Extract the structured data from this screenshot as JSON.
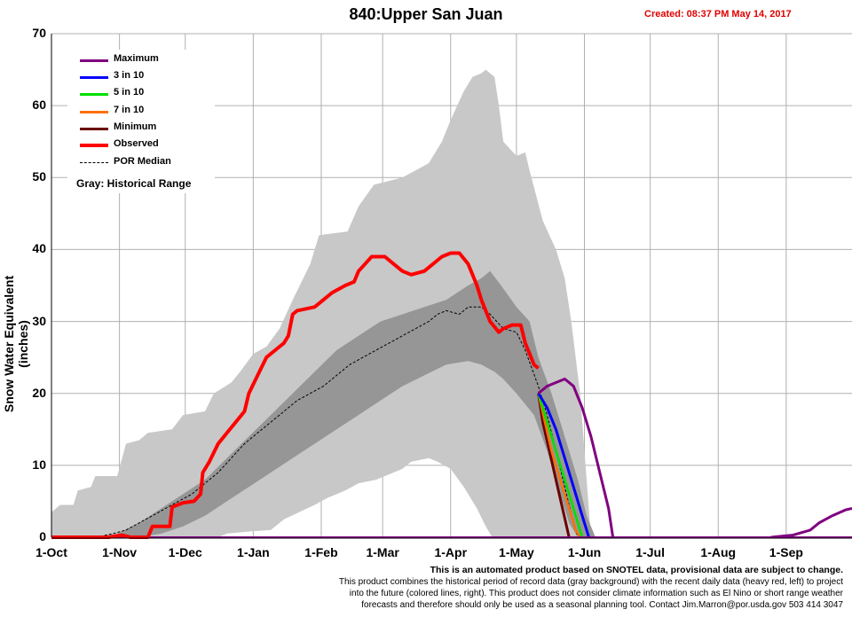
{
  "header": {
    "title": "840:Upper San Juan",
    "created": "Created: 08:37 PM May 14, 2017"
  },
  "colors": {
    "maximum": "#800080",
    "p3in10": "#0000ff",
    "p5in10": "#00e000",
    "p7in10": "#ff7000",
    "minimum": "#6b0000",
    "observed": "#ff0000",
    "median": "#000000",
    "hist_outer": "#c8c8c8",
    "hist_inner": "#969696"
  },
  "legend": {
    "items": [
      {
        "key": "maximum",
        "label": "Maximum"
      },
      {
        "key": "p3in10",
        "label": "3 in 10"
      },
      {
        "key": "p5in10",
        "label": "5 in 10"
      },
      {
        "key": "p7in10",
        "label": "7 in 10"
      },
      {
        "key": "minimum",
        "label": "Minimum"
      },
      {
        "key": "observed",
        "label": "Observed"
      },
      {
        "key": "median",
        "label": "POR Median"
      }
    ],
    "gray_note": "Gray: Historical Range"
  },
  "footer": {
    "line1": "This is an automated product based on SNOTEL data, provisional data are subject to change.",
    "line2": "This product combines the historical period of record data (gray background) with the recent daily data (heavy red, left) to project",
    "line3": "into the future (colored lines, right). This product does not consider climate information such as El Nino or short range weather",
    "line4": "forecasts and therefore should only be used as a seasonal planning tool. Contact Jim.Marron@por.usda.gov 503 414 3047"
  },
  "chart_data": {
    "type": "area",
    "title": "840:Upper San Juan",
    "ylabel": "Snow Water Equivalent (inches)",
    "xlabel": "",
    "ylim": [
      0,
      70
    ],
    "yticks": [
      0,
      10,
      20,
      30,
      40,
      50,
      60,
      70
    ],
    "xticks": [
      {
        "label": "1-Oct",
        "day": 0
      },
      {
        "label": "1-Nov",
        "day": 31
      },
      {
        "label": "1-Dec",
        "day": 61
      },
      {
        "label": "1-Jan",
        "day": 92
      },
      {
        "label": "1-Feb",
        "day": 123
      },
      {
        "label": "1-Mar",
        "day": 151
      },
      {
        "label": "1-Apr",
        "day": 182
      },
      {
        "label": "1-May",
        "day": 212
      },
      {
        "label": "1-Jun",
        "day": 243
      },
      {
        "label": "1-Jul",
        "day": 273
      },
      {
        "label": "1-Aug",
        "day": 304
      },
      {
        "label": "1-Sep",
        "day": 335
      }
    ],
    "xlim": [
      0,
      365
    ],
    "grid": true,
    "legend_position": "top-left",
    "series": [
      {
        "name": "Historical Range (max)",
        "key": "hist_outer_top",
        "points": [
          [
            0,
            3.5
          ],
          [
            4,
            4.5
          ],
          [
            10,
            4.5
          ],
          [
            12,
            6.5
          ],
          [
            18,
            7
          ],
          [
            20,
            8.5
          ],
          [
            30,
            8.5
          ],
          [
            34,
            13
          ],
          [
            40,
            13.5
          ],
          [
            44,
            14.5
          ],
          [
            55,
            15
          ],
          [
            60,
            17
          ],
          [
            70,
            17.5
          ],
          [
            74,
            20
          ],
          [
            82,
            21.5
          ],
          [
            86,
            23
          ],
          [
            92,
            25.5
          ],
          [
            98,
            26.5
          ],
          [
            104,
            29
          ],
          [
            110,
            33
          ],
          [
            118,
            38
          ],
          [
            122,
            42
          ],
          [
            135,
            42.5
          ],
          [
            140,
            46
          ],
          [
            147,
            49
          ],
          [
            160,
            50
          ],
          [
            166,
            51
          ],
          [
            172,
            52
          ],
          [
            178,
            55
          ],
          [
            182,
            58
          ],
          [
            188,
            62
          ],
          [
            192,
            64
          ],
          [
            196,
            64.5
          ],
          [
            198,
            65
          ],
          [
            202,
            64
          ],
          [
            204,
            60
          ],
          [
            206,
            55
          ],
          [
            212,
            53
          ],
          [
            216,
            53.5
          ],
          [
            218,
            51
          ],
          [
            224,
            44
          ],
          [
            230,
            40
          ],
          [
            234,
            36
          ],
          [
            237,
            30
          ],
          [
            241,
            20
          ],
          [
            243,
            12
          ],
          [
            246,
            0
          ],
          [
            365,
            0
          ]
        ]
      },
      {
        "name": "Historical Range (min)",
        "key": "hist_outer_bottom",
        "points": [
          [
            0,
            0
          ],
          [
            76,
            0
          ],
          [
            80,
            0.5
          ],
          [
            90,
            0.8
          ],
          [
            100,
            1
          ],
          [
            106,
            2.5
          ],
          [
            120,
            4.5
          ],
          [
            126,
            5.5
          ],
          [
            134,
            6.5
          ],
          [
            140,
            7.5
          ],
          [
            148,
            8
          ],
          [
            152,
            8.5
          ],
          [
            160,
            9.5
          ],
          [
            164,
            10.5
          ],
          [
            172,
            11
          ],
          [
            176,
            10.5
          ],
          [
            182,
            9.5
          ],
          [
            188,
            7
          ],
          [
            194,
            4
          ],
          [
            198,
            1.5
          ],
          [
            201,
            0
          ],
          [
            365,
            0
          ]
        ]
      },
      {
        "name": "Historical inner band (upper)",
        "key": "hist_inner_top",
        "points": [
          [
            0,
            0
          ],
          [
            20,
            0
          ],
          [
            30,
            0.5
          ],
          [
            40,
            2
          ],
          [
            50,
            4
          ],
          [
            60,
            6
          ],
          [
            70,
            8
          ],
          [
            80,
            11
          ],
          [
            90,
            14
          ],
          [
            100,
            17
          ],
          [
            110,
            20
          ],
          [
            120,
            23
          ],
          [
            130,
            26
          ],
          [
            140,
            28
          ],
          [
            150,
            30
          ],
          [
            160,
            31
          ],
          [
            170,
            32
          ],
          [
            180,
            33
          ],
          [
            190,
            35
          ],
          [
            196,
            36
          ],
          [
            200,
            37
          ],
          [
            205,
            35
          ],
          [
            212,
            32
          ],
          [
            218,
            30
          ],
          [
            222,
            25
          ],
          [
            228,
            20
          ],
          [
            234,
            14
          ],
          [
            240,
            8
          ],
          [
            244,
            3
          ],
          [
            248,
            0
          ]
        ]
      },
      {
        "name": "Historical inner band (lower)",
        "key": "hist_inner_bottom",
        "points": [
          [
            0,
            0
          ],
          [
            40,
            0
          ],
          [
            50,
            0.5
          ],
          [
            60,
            1.5
          ],
          [
            70,
            3
          ],
          [
            80,
            5
          ],
          [
            90,
            7
          ],
          [
            100,
            9
          ],
          [
            110,
            11
          ],
          [
            120,
            13
          ],
          [
            130,
            15
          ],
          [
            140,
            17
          ],
          [
            150,
            19
          ],
          [
            160,
            21
          ],
          [
            170,
            22.5
          ],
          [
            180,
            24
          ],
          [
            190,
            24.5
          ],
          [
            196,
            24
          ],
          [
            202,
            23
          ],
          [
            206,
            22
          ],
          [
            212,
            20
          ],
          [
            220,
            17
          ],
          [
            226,
            12
          ],
          [
            232,
            6
          ],
          [
            236,
            2
          ],
          [
            240,
            0
          ]
        ]
      },
      {
        "name": "Observed",
        "key": "observed",
        "points": [
          [
            0,
            0
          ],
          [
            26,
            0
          ],
          [
            32,
            0.3
          ],
          [
            36,
            0
          ],
          [
            44,
            0
          ],
          [
            46,
            1.5
          ],
          [
            54,
            1.5
          ],
          [
            55,
            4.2
          ],
          [
            60,
            4.8
          ],
          [
            65,
            5
          ],
          [
            68,
            6
          ],
          [
            69,
            9
          ],
          [
            72,
            10.5
          ],
          [
            76,
            13
          ],
          [
            80,
            14.5
          ],
          [
            84,
            16
          ],
          [
            88,
            17.5
          ],
          [
            90,
            20
          ],
          [
            94,
            22.5
          ],
          [
            98,
            25
          ],
          [
            102,
            26
          ],
          [
            106,
            27
          ],
          [
            108,
            28
          ],
          [
            110,
            31
          ],
          [
            112,
            31.5
          ],
          [
            120,
            32
          ],
          [
            124,
            33
          ],
          [
            128,
            34
          ],
          [
            134,
            35
          ],
          [
            138,
            35.5
          ],
          [
            140,
            37
          ],
          [
            143,
            38
          ],
          [
            146,
            39
          ],
          [
            152,
            39
          ],
          [
            156,
            38
          ],
          [
            160,
            37
          ],
          [
            164,
            36.5
          ],
          [
            170,
            37
          ],
          [
            174,
            38
          ],
          [
            178,
            39
          ],
          [
            182,
            39.5
          ],
          [
            186,
            39.5
          ],
          [
            190,
            38
          ],
          [
            194,
            35
          ],
          [
            196,
            33
          ],
          [
            200,
            30
          ],
          [
            204,
            28.5
          ],
          [
            206,
            29
          ],
          [
            210,
            29.5
          ],
          [
            214,
            29.5
          ],
          [
            216,
            27
          ],
          [
            220,
            24
          ],
          [
            222,
            23.5
          ]
        ]
      },
      {
        "name": "POR Median",
        "key": "median",
        "points": [
          [
            0,
            0
          ],
          [
            20,
            0
          ],
          [
            28,
            0.5
          ],
          [
            34,
            1
          ],
          [
            40,
            2
          ],
          [
            46,
            3
          ],
          [
            52,
            4
          ],
          [
            58,
            5
          ],
          [
            64,
            6
          ],
          [
            70,
            7.5
          ],
          [
            76,
            9
          ],
          [
            82,
            11
          ],
          [
            88,
            13
          ],
          [
            94,
            14.5
          ],
          [
            100,
            16
          ],
          [
            106,
            17.5
          ],
          [
            112,
            19
          ],
          [
            118,
            20
          ],
          [
            124,
            21
          ],
          [
            130,
            22.5
          ],
          [
            136,
            24
          ],
          [
            142,
            25
          ],
          [
            148,
            26
          ],
          [
            154,
            27
          ],
          [
            160,
            28
          ],
          [
            166,
            29
          ],
          [
            172,
            30
          ],
          [
            176,
            31
          ],
          [
            180,
            31.5
          ],
          [
            186,
            31
          ],
          [
            190,
            32
          ],
          [
            196,
            32
          ],
          [
            200,
            31
          ],
          [
            206,
            29
          ],
          [
            212,
            28.5
          ],
          [
            216,
            26
          ],
          [
            222,
            21
          ],
          [
            226,
            17
          ],
          [
            230,
            12
          ],
          [
            234,
            7
          ],
          [
            238,
            2
          ],
          [
            240,
            0
          ]
        ]
      },
      {
        "name": "Maximum",
        "key": "maximum",
        "points": [
          [
            222,
            20
          ],
          [
            226,
            21
          ],
          [
            230,
            21.5
          ],
          [
            234,
            22
          ],
          [
            238,
            21
          ],
          [
            242,
            18
          ],
          [
            246,
            14
          ],
          [
            250,
            9
          ],
          [
            254,
            4
          ],
          [
            256,
            0
          ]
        ],
        "tail": [
          [
            328,
            0
          ],
          [
            338,
            0.3
          ],
          [
            346,
            1
          ],
          [
            350,
            2
          ],
          [
            356,
            3
          ],
          [
            362,
            3.8
          ],
          [
            365,
            4
          ]
        ]
      },
      {
        "name": "3 in 10",
        "key": "p3in10",
        "points": [
          [
            222,
            20
          ],
          [
            226,
            18
          ],
          [
            230,
            15
          ],
          [
            234,
            11
          ],
          [
            238,
            7
          ],
          [
            242,
            3
          ],
          [
            245,
            0
          ]
        ]
      },
      {
        "name": "5 in 10",
        "key": "p5in10",
        "points": [
          [
            222,
            20
          ],
          [
            225,
            17
          ],
          [
            229,
            13
          ],
          [
            233,
            9
          ],
          [
            237,
            5
          ],
          [
            240,
            2
          ],
          [
            242,
            0
          ]
        ]
      },
      {
        "name": "7 in 10",
        "key": "p7in10",
        "points": [
          [
            222,
            20
          ],
          [
            225,
            16
          ],
          [
            228,
            12
          ],
          [
            232,
            8
          ],
          [
            236,
            4
          ],
          [
            239,
            1
          ],
          [
            241,
            0
          ]
        ]
      },
      {
        "name": "Minimum",
        "key": "minimum",
        "points": [
          [
            222,
            20
          ],
          [
            224,
            16
          ],
          [
            227,
            12
          ],
          [
            230,
            8
          ],
          [
            233,
            4
          ],
          [
            236,
            0
          ]
        ]
      }
    ]
  }
}
